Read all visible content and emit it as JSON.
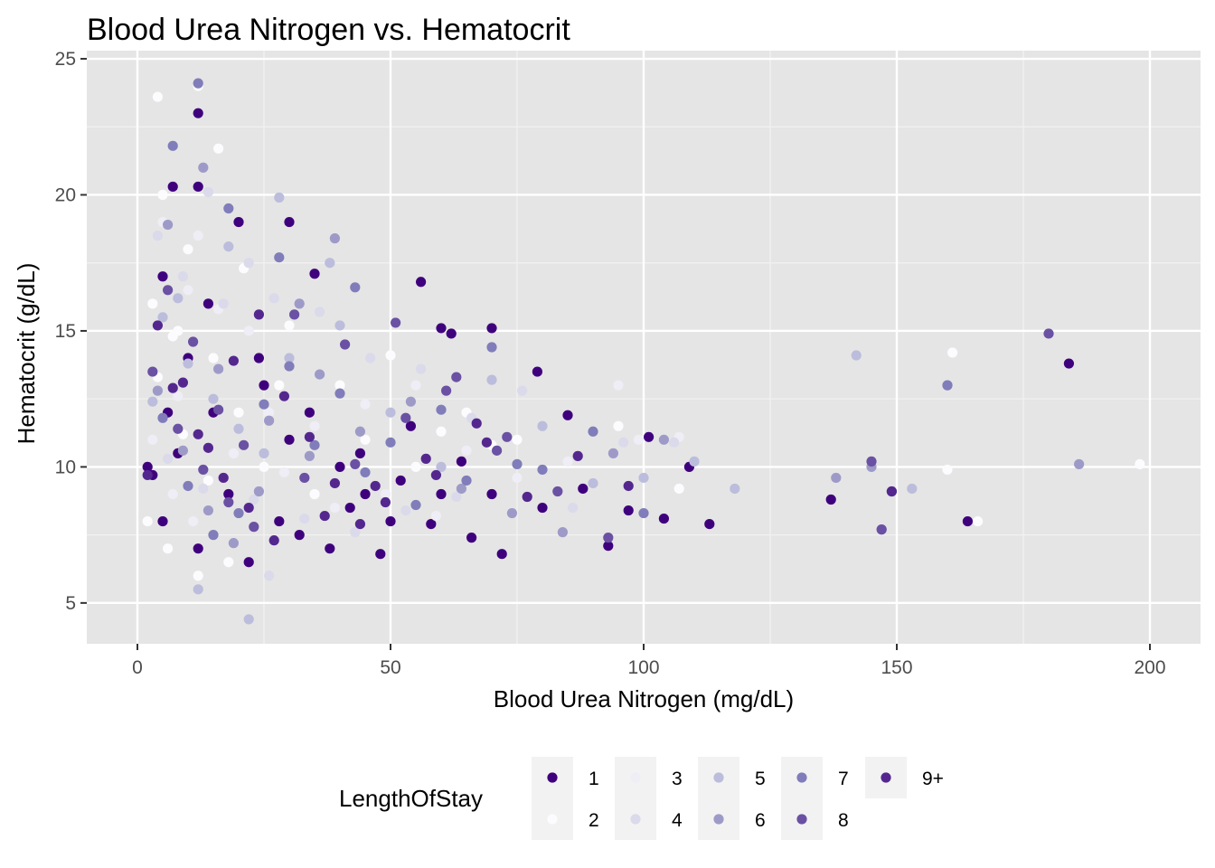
{
  "chart_data": {
    "type": "scatter",
    "title": "Blood Urea Nitrogen vs. Hematocrit",
    "xlabel": "Blood Urea Nitrogen (mg/dL)",
    "ylabel": "Hematocrit (g/dL)",
    "xlim": [
      -10,
      210
    ],
    "ylim": [
      3.5,
      25.3
    ],
    "x_ticks": [
      0,
      50,
      100,
      150,
      200
    ],
    "y_ticks": [
      5,
      10,
      15,
      20,
      25
    ],
    "grid": true,
    "panel_background": "#e5e5e5",
    "legend": {
      "title": "LengthOfStay",
      "position": "bottom",
      "entries": [
        {
          "label": "1",
          "color": "#3f007d"
        },
        {
          "label": "2",
          "color": "#fcfbfd"
        },
        {
          "label": "3",
          "color": "#efedf5"
        },
        {
          "label": "4",
          "color": "#dadaeb"
        },
        {
          "label": "5",
          "color": "#bcbddc"
        },
        {
          "label": "6",
          "color": "#9e9ac8"
        },
        {
          "label": "7",
          "color": "#807dba"
        },
        {
          "label": "8",
          "color": "#6a51a3"
        },
        {
          "label": "9+",
          "color": "#54278f"
        }
      ]
    },
    "series": [
      {
        "name": "1",
        "points": [
          [
            56,
            16.8
          ],
          [
            184,
            13.8
          ],
          [
            137,
            8.8
          ],
          [
            164,
            8
          ],
          [
            113,
            7.9
          ],
          [
            104,
            8.1
          ],
          [
            109,
            10
          ],
          [
            93,
            7.1
          ],
          [
            85,
            11.9
          ],
          [
            79,
            13.5
          ],
          [
            70,
            15.1
          ],
          [
            62,
            14.9
          ],
          [
            60,
            15.1
          ],
          [
            35,
            17.1
          ],
          [
            30,
            19
          ],
          [
            12,
            23
          ],
          [
            12,
            20.3
          ],
          [
            7,
            20.3
          ],
          [
            20,
            19
          ],
          [
            5,
            17
          ],
          [
            10,
            14
          ],
          [
            15,
            12
          ],
          [
            25,
            13
          ],
          [
            30,
            11
          ],
          [
            40,
            10
          ],
          [
            45,
            9
          ],
          [
            50,
            8
          ],
          [
            60,
            9
          ],
          [
            70,
            9
          ],
          [
            80,
            8.5
          ],
          [
            3,
            9.7
          ],
          [
            8,
            10.5
          ],
          [
            18,
            9
          ],
          [
            28,
            8
          ],
          [
            38,
            7
          ],
          [
            48,
            6.8
          ],
          [
            58,
            7.9
          ],
          [
            66,
            7.4
          ],
          [
            72,
            6.8
          ],
          [
            88,
            9.2
          ],
          [
            97,
            8.4
          ],
          [
            101,
            11.1
          ],
          [
            5,
            8
          ],
          [
            12,
            7
          ],
          [
            22,
            6.5
          ],
          [
            32,
            7.5
          ],
          [
            42,
            8.5
          ],
          [
            52,
            9.5
          ],
          [
            2,
            10
          ],
          [
            6,
            12
          ],
          [
            14,
            16
          ],
          [
            24,
            14
          ],
          [
            34,
            12
          ],
          [
            44,
            10.5
          ],
          [
            54,
            11.5
          ],
          [
            64,
            10.2
          ]
        ]
      },
      {
        "name": "2",
        "points": [
          [
            4,
            23.6
          ],
          [
            16,
            21.7
          ],
          [
            161,
            14.2
          ],
          [
            198,
            10.1
          ],
          [
            166,
            8
          ],
          [
            107,
            9.2
          ],
          [
            160,
            9.9
          ],
          [
            95,
            11.5
          ],
          [
            5,
            20
          ],
          [
            10,
            18
          ],
          [
            3,
            16
          ],
          [
            8,
            15
          ],
          [
            15,
            14
          ],
          [
            20,
            12
          ],
          [
            25,
            10
          ],
          [
            2,
            8
          ],
          [
            6,
            7
          ],
          [
            12,
            6
          ],
          [
            18,
            6.5
          ],
          [
            28,
            13
          ],
          [
            35,
            9
          ],
          [
            45,
            11
          ],
          [
            55,
            10
          ],
          [
            65,
            12
          ],
          [
            75,
            11
          ],
          [
            12,
            24
          ],
          [
            7,
            14.8
          ],
          [
            9,
            11.2
          ],
          [
            14,
            9.5
          ],
          [
            4,
            13.3
          ],
          [
            21,
            17.3
          ],
          [
            30,
            15.2
          ],
          [
            40,
            13
          ],
          [
            50,
            14.1
          ],
          [
            60,
            11.3
          ],
          [
            70,
            10.8
          ]
        ]
      },
      {
        "name": "3",
        "points": [
          [
            12,
            18.5
          ],
          [
            5,
            19
          ],
          [
            10,
            16.5
          ],
          [
            16,
            15.8
          ],
          [
            22,
            15
          ],
          [
            8,
            12.6
          ],
          [
            26,
            12
          ],
          [
            35,
            11.5
          ],
          [
            45,
            12.3
          ],
          [
            55,
            13
          ],
          [
            65,
            10.6
          ],
          [
            75,
            9.6
          ],
          [
            85,
            10.2
          ],
          [
            95,
            13
          ],
          [
            99,
            11
          ],
          [
            107,
            11.1
          ],
          [
            3,
            11
          ],
          [
            7,
            9
          ],
          [
            11,
            8
          ],
          [
            19,
            10.5
          ],
          [
            29,
            9.8
          ],
          [
            39,
            8.5
          ],
          [
            49,
            9
          ],
          [
            59,
            8.2
          ]
        ]
      },
      {
        "name": "4",
        "points": [
          [
            26,
            6
          ],
          [
            14,
            20.1
          ],
          [
            22,
            17.5
          ],
          [
            4,
            18.5
          ],
          [
            9,
            17
          ],
          [
            17,
            16
          ],
          [
            27,
            16.2
          ],
          [
            36,
            15.7
          ],
          [
            46,
            14
          ],
          [
            56,
            13.6
          ],
          [
            66,
            11.8
          ],
          [
            76,
            12.8
          ],
          [
            86,
            8.5
          ],
          [
            96,
            10.9
          ],
          [
            106,
            10.9
          ],
          [
            6,
            10.3
          ],
          [
            13,
            9.2
          ],
          [
            23,
            8.8
          ],
          [
            33,
            8.1
          ],
          [
            43,
            7.6
          ],
          [
            53,
            8.4
          ],
          [
            63,
            8.9
          ]
        ]
      },
      {
        "name": "5",
        "points": [
          [
            142,
            14.1
          ],
          [
            118,
            9.2
          ],
          [
            153,
            9.2
          ],
          [
            22,
            4.4
          ],
          [
            160,
            13
          ],
          [
            12,
            5.5
          ],
          [
            5,
            15.5
          ],
          [
            10,
            13.8
          ],
          [
            15,
            12.5
          ],
          [
            20,
            11.4
          ],
          [
            25,
            10.5
          ],
          [
            30,
            14
          ],
          [
            40,
            15.2
          ],
          [
            50,
            12
          ],
          [
            60,
            10
          ],
          [
            70,
            13.2
          ],
          [
            80,
            11.5
          ],
          [
            90,
            9.4
          ],
          [
            100,
            9.6
          ],
          [
            110,
            10.2
          ],
          [
            3,
            12.4
          ],
          [
            8,
            16.2
          ],
          [
            18,
            18.1
          ],
          [
            28,
            19.9
          ],
          [
            38,
            17.5
          ]
        ]
      },
      {
        "name": "6",
        "points": [
          [
            138,
            9.6
          ],
          [
            145,
            10
          ],
          [
            186,
            10.1
          ],
          [
            147,
            7.7
          ],
          [
            4,
            12.8
          ],
          [
            9,
            10.6
          ],
          [
            14,
            8.4
          ],
          [
            19,
            7.2
          ],
          [
            24,
            9.1
          ],
          [
            34,
            10.4
          ],
          [
            44,
            11.3
          ],
          [
            54,
            12.4
          ],
          [
            64,
            9.2
          ],
          [
            74,
            8.3
          ],
          [
            84,
            7.6
          ],
          [
            94,
            10.5
          ],
          [
            104,
            11
          ],
          [
            39,
            18.4
          ],
          [
            32,
            16
          ],
          [
            13,
            21
          ],
          [
            6,
            18.9
          ],
          [
            16,
            13.6
          ],
          [
            26,
            11.7
          ],
          [
            36,
            13.4
          ]
        ]
      },
      {
        "name": "7",
        "points": [
          [
            149,
            9.1
          ],
          [
            160,
            13
          ],
          [
            5,
            11.8
          ],
          [
            10,
            9.3
          ],
          [
            15,
            7.5
          ],
          [
            20,
            8.3
          ],
          [
            25,
            12.3
          ],
          [
            30,
            13.7
          ],
          [
            35,
            10.8
          ],
          [
            40,
            12.7
          ],
          [
            45,
            9.8
          ],
          [
            50,
            10.9
          ],
          [
            55,
            8.6
          ],
          [
            60,
            12.1
          ],
          [
            65,
            9.5
          ],
          [
            70,
            14.4
          ],
          [
            75,
            10.1
          ],
          [
            80,
            9.9
          ],
          [
            90,
            11.3
          ],
          [
            100,
            8.3
          ],
          [
            12,
            24.1
          ],
          [
            7,
            21.8
          ],
          [
            18,
            19.5
          ],
          [
            28,
            17.7
          ],
          [
            43,
            16.6
          ]
        ]
      },
      {
        "name": "8",
        "points": [
          [
            180,
            14.9
          ],
          [
            145,
            10.2
          ],
          [
            147,
            7.7
          ],
          [
            3,
            13.5
          ],
          [
            8,
            11.4
          ],
          [
            13,
            9.9
          ],
          [
            18,
            8.7
          ],
          [
            23,
            7.8
          ],
          [
            33,
            9.6
          ],
          [
            43,
            10.1
          ],
          [
            53,
            11.8
          ],
          [
            63,
            13.3
          ],
          [
            73,
            11.1
          ],
          [
            83,
            9.1
          ],
          [
            93,
            7.4
          ],
          [
            6,
            16.5
          ],
          [
            11,
            14.6
          ],
          [
            16,
            12.1
          ],
          [
            21,
            10.8
          ],
          [
            31,
            15.6
          ],
          [
            41,
            14.5
          ],
          [
            51,
            15.3
          ],
          [
            61,
            12.8
          ],
          [
            71,
            10.6
          ]
        ]
      },
      {
        "name": "9+",
        "points": [
          [
            149,
            9.1
          ],
          [
            2,
            9.7
          ],
          [
            7,
            12.9
          ],
          [
            12,
            11.2
          ],
          [
            17,
            9.6
          ],
          [
            22,
            8.5
          ],
          [
            27,
            7.3
          ],
          [
            37,
            8.2
          ],
          [
            47,
            9.3
          ],
          [
            57,
            10.3
          ],
          [
            67,
            11.6
          ],
          [
            77,
            8.9
          ],
          [
            87,
            10.4
          ],
          [
            97,
            9.3
          ],
          [
            4,
            15.2
          ],
          [
            9,
            13.1
          ],
          [
            14,
            10.7
          ],
          [
            19,
            13.9
          ],
          [
            24,
            15.6
          ],
          [
            29,
            12.6
          ],
          [
            34,
            11.1
          ],
          [
            39,
            9.4
          ],
          [
            44,
            7.9
          ],
          [
            49,
            8.7
          ],
          [
            59,
            9.7
          ],
          [
            69,
            10.9
          ]
        ]
      }
    ]
  }
}
